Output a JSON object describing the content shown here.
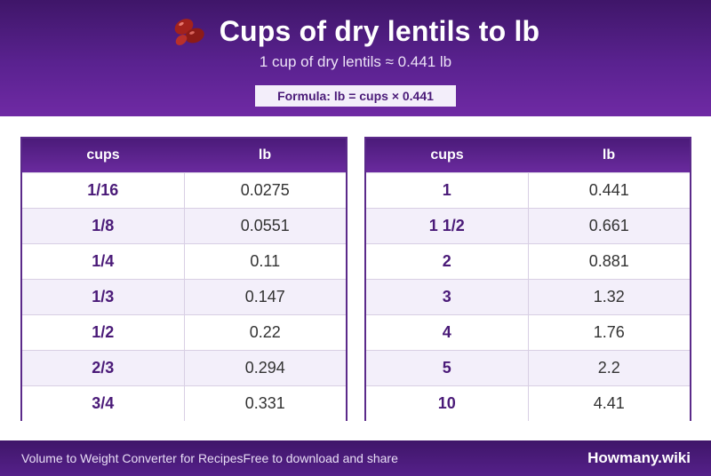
{
  "header": {
    "title": "Cups of dry lentils to lb",
    "subtitle": "1 cup of dry lentils ≈ 0.441 lb",
    "formula": "Formula: lb = cups × 0.441",
    "icon": "beans-icon"
  },
  "tables": [
    {
      "columns": [
        "cups",
        "lb"
      ],
      "rows": [
        [
          "1/16",
          "0.0275"
        ],
        [
          "1/8",
          "0.0551"
        ],
        [
          "1/4",
          "0.11"
        ],
        [
          "1/3",
          "0.147"
        ],
        [
          "1/2",
          "0.22"
        ],
        [
          "2/3",
          "0.294"
        ],
        [
          "3/4",
          "0.331"
        ]
      ]
    },
    {
      "columns": [
        "cups",
        "lb"
      ],
      "rows": [
        [
          "1",
          "0.441"
        ],
        [
          "1 1/2",
          "0.661"
        ],
        [
          "2",
          "0.881"
        ],
        [
          "3",
          "1.32"
        ],
        [
          "4",
          "1.76"
        ],
        [
          "5",
          "2.2"
        ],
        [
          "10",
          "4.41"
        ]
      ]
    }
  ],
  "footer": {
    "left_text": "Volume to Weight Converter for Recipes",
    "middle_text": "Free to download and share",
    "brand": "Howmany.wiki"
  },
  "colors": {
    "accent": "#5a2290",
    "header_text": "#4a1a78"
  }
}
